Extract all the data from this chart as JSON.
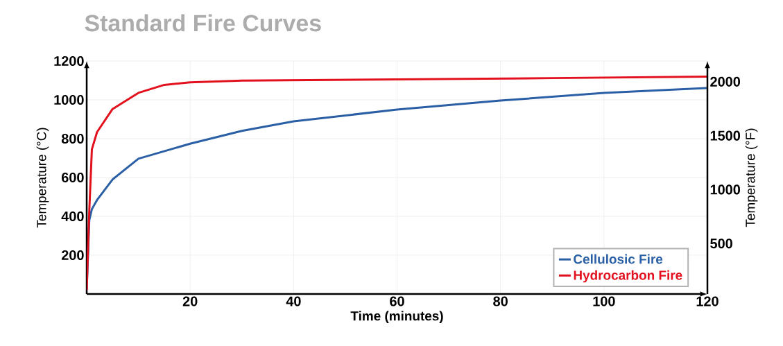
{
  "chart_data": {
    "type": "line",
    "title": "Standard Fire Curves",
    "xlabel": "Time (minutes)",
    "ylabel": "Temperature (°C)",
    "y2label": "Temperature (°F)",
    "x": [
      0,
      0.5,
      1,
      2,
      5,
      10,
      15,
      20,
      30,
      40,
      60,
      80,
      90,
      100,
      120
    ],
    "series": [
      {
        "name": "Cellulosic Fire",
        "color": "#2a5fa5",
        "values": [
          20,
          380,
          437,
          484,
          590,
          697,
          null,
          774,
          840,
          889,
          950,
          996,
          null,
          1036,
          1061
        ]
      },
      {
        "name": "Hydrocarbon Fire",
        "color": "#e3101e",
        "values": [
          20,
          428,
          745,
          834,
          953,
          1036,
          1077,
          1090,
          1099,
          null,
          1105,
          null,
          1112,
          null,
          1120
        ]
      }
    ],
    "xlim": [
      0,
      120
    ],
    "xticks": [
      20,
      40,
      60,
      80,
      100,
      120
    ],
    "ylim": [
      0,
      1200
    ],
    "yticks": [
      200,
      400,
      600,
      800,
      1000,
      1200
    ],
    "y2lim": [
      32,
      2192
    ],
    "y2ticks": [
      500,
      1000,
      1500,
      2000
    ],
    "grid": true,
    "legend": "bottom right",
    "line_style": "solid"
  }
}
